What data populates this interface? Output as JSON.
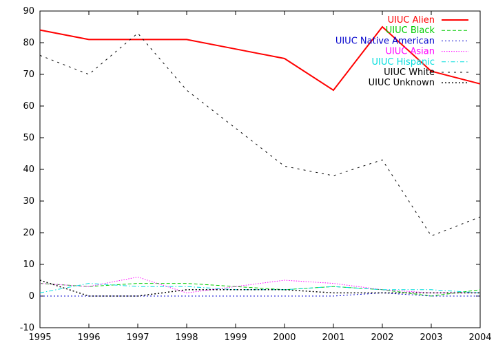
{
  "chart_data": {
    "type": "line",
    "title": "",
    "xlabel": "",
    "ylabel": "",
    "x": [
      1995,
      1996,
      1997,
      1998,
      1999,
      2000,
      2001,
      2002,
      2003,
      2004
    ],
    "xlim": [
      1995,
      2004
    ],
    "ylim": [
      -10,
      90
    ],
    "yticks": [
      -10,
      0,
      10,
      20,
      30,
      40,
      50,
      60,
      70,
      80,
      90
    ],
    "xticks": [
      1995,
      1996,
      1997,
      1998,
      1999,
      2000,
      2001,
      2002,
      2003,
      2004
    ],
    "grid": false,
    "legend_position": "top-right",
    "series": [
      {
        "name": "UIUC Alien",
        "color": "#ff0000",
        "dash": "solid",
        "width": 2,
        "values": [
          84,
          81,
          81,
          81,
          78,
          75,
          65,
          85,
          71,
          67
        ]
      },
      {
        "name": "UIUC Black",
        "color": "#00cc00",
        "dash": "dashed",
        "width": 1,
        "values": [
          4,
          3,
          4,
          4,
          3,
          2,
          3,
          2,
          0,
          2
        ]
      },
      {
        "name": "UIUC Native American",
        "color": "#0000cc",
        "dash": "dotted",
        "width": 1,
        "values": [
          0,
          0,
          0,
          0,
          0,
          0,
          0,
          1,
          0,
          0
        ]
      },
      {
        "name": "UIUC Asian",
        "color": "#ff00ff",
        "dash": "dotted-fine",
        "width": 1,
        "values": [
          4,
          3,
          6,
          1,
          3,
          5,
          4,
          2,
          1,
          1
        ]
      },
      {
        "name": "UIUC Hispanic",
        "color": "#00dddd",
        "dash": "dashdot",
        "width": 1,
        "values": [
          1,
          4,
          3,
          3,
          2,
          2,
          3,
          2,
          2,
          1
        ]
      },
      {
        "name": "UIUC White",
        "color": "#000000",
        "dash": "sparse",
        "width": 1,
        "values": [
          76,
          70,
          83,
          65,
          53,
          41,
          38,
          43,
          19,
          25
        ]
      },
      {
        "name": "UIUC Unknown",
        "color": "#000000",
        "dash": "dotted-heavy",
        "width": 1.5,
        "values": [
          5,
          0,
          0,
          2,
          2,
          2,
          1,
          1,
          1,
          1
        ]
      }
    ]
  }
}
